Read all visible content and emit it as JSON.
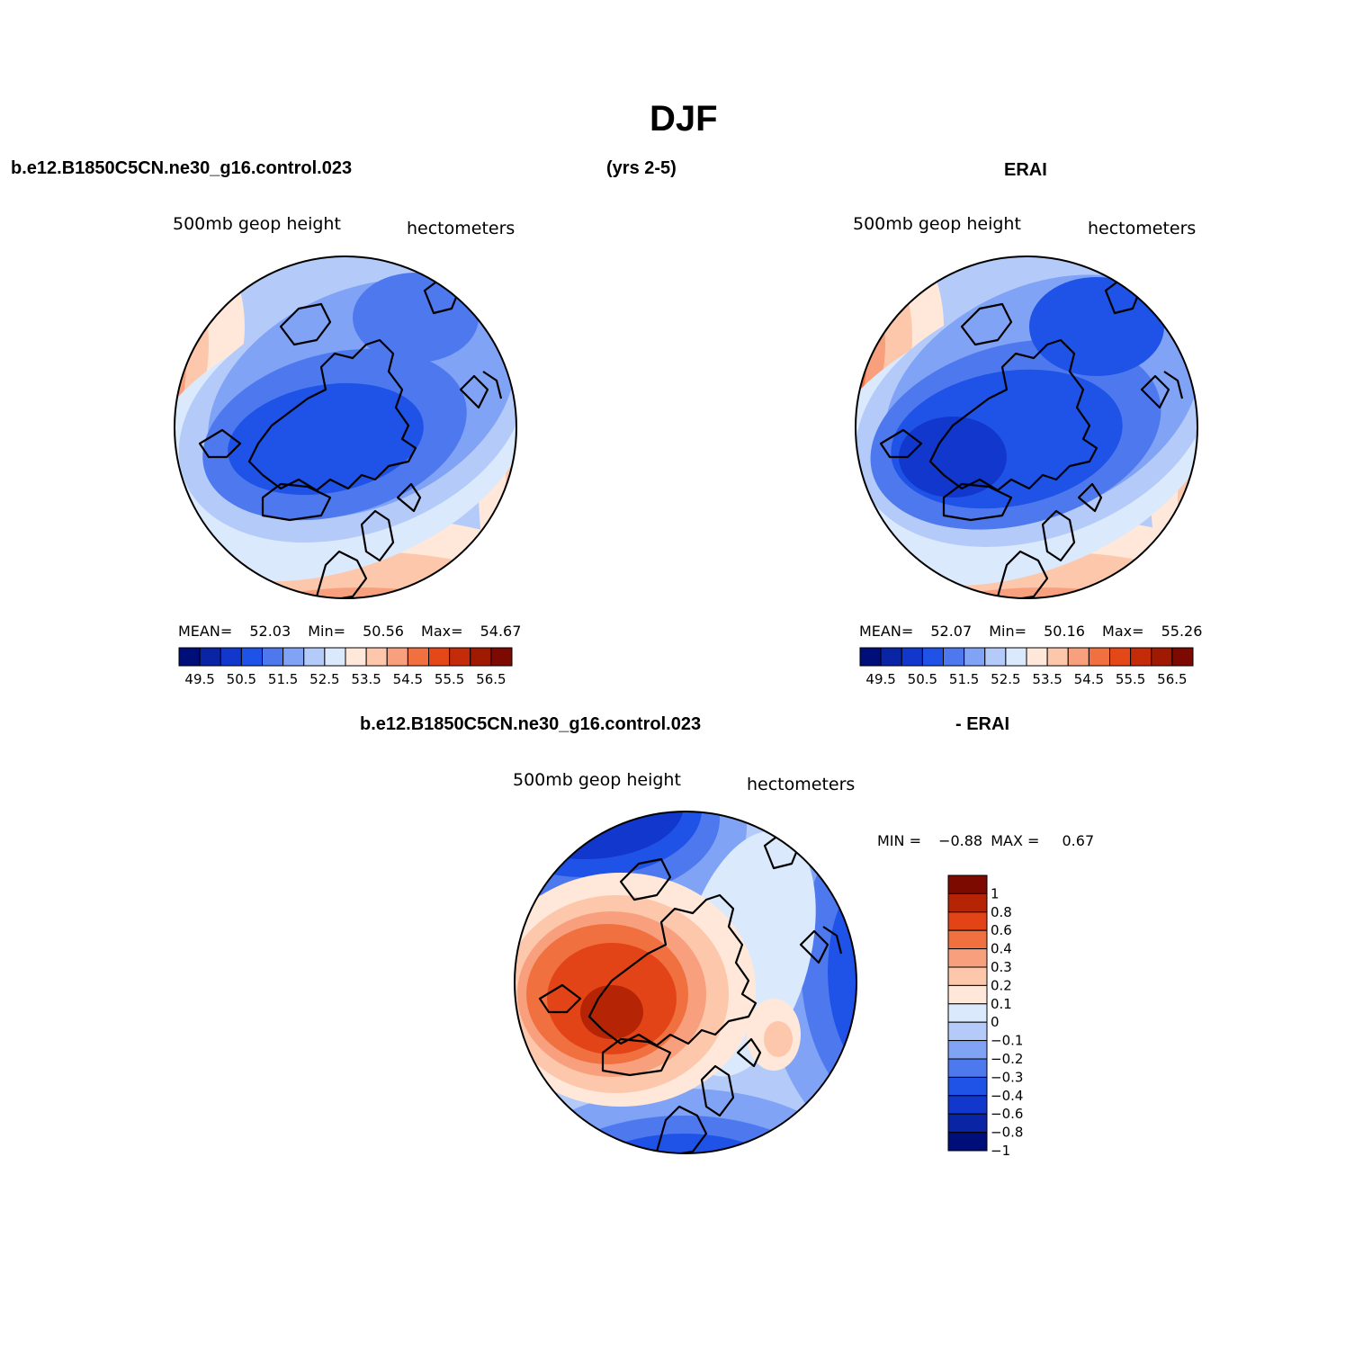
{
  "title": "DJF",
  "case_name": "b.e12.B1850C5CN.ne30_g16.control.023",
  "years": "(yrs 2-5)",
  "reference": "ERAI",
  "diff_header_left": "b.e12.B1850C5CN.ne30_g16.control.023",
  "diff_header_right": "- ERAI",
  "panels": {
    "model": {
      "variable": "500mb geop height",
      "units": "hectometers",
      "mean_label": "MEAN=",
      "mean": "52.03",
      "min_label": "Min=",
      "min": "50.56",
      "max_label": "Max=",
      "max": "54.67"
    },
    "obs": {
      "variable": "500mb geop height",
      "units": "hectometers",
      "mean_label": "MEAN=",
      "mean": "52.07",
      "min_label": "Min=",
      "min": "50.16",
      "max_label": "Max=",
      "max": "55.26"
    },
    "diff": {
      "variable": "500mb geop height",
      "units": "hectometers",
      "min_label": "MIN =",
      "min": "−0.88",
      "max_label": "MAX =",
      "max": "0.67"
    }
  },
  "colorbar_main": {
    "ticks": [
      "49.5",
      "50.5",
      "51.5",
      "52.5",
      "53.5",
      "54.5",
      "55.5",
      "56.5"
    ],
    "colors": [
      "#000e7a",
      "#0a24a6",
      "#1237cc",
      "#1f52e6",
      "#4e79ee",
      "#80a3f6",
      "#b4cbfa",
      "#dbe9fd",
      "#ffe8d9",
      "#fdc7ac",
      "#f8a07d",
      "#f0703f",
      "#e44818",
      "#c42b08",
      "#a01a02",
      "#7d0a00"
    ]
  },
  "colorbar_diff": {
    "ticks": [
      "1",
      "0.8",
      "0.6",
      "0.4",
      "0.3",
      "0.2",
      "0.1",
      "0",
      "−0.1",
      "−0.2",
      "−0.3",
      "−0.4",
      "−0.6",
      "−0.8",
      "−1"
    ],
    "colors": [
      "#7d0a00",
      "#b52405",
      "#e24417",
      "#f0703f",
      "#f8a07d",
      "#fdc7ac",
      "#ffe8d9",
      "#dbe9fd",
      "#b4cbfa",
      "#80a3f6",
      "#4e79ee",
      "#1f52e6",
      "#1237cc",
      "#0a24a6",
      "#000e7a"
    ]
  }
}
